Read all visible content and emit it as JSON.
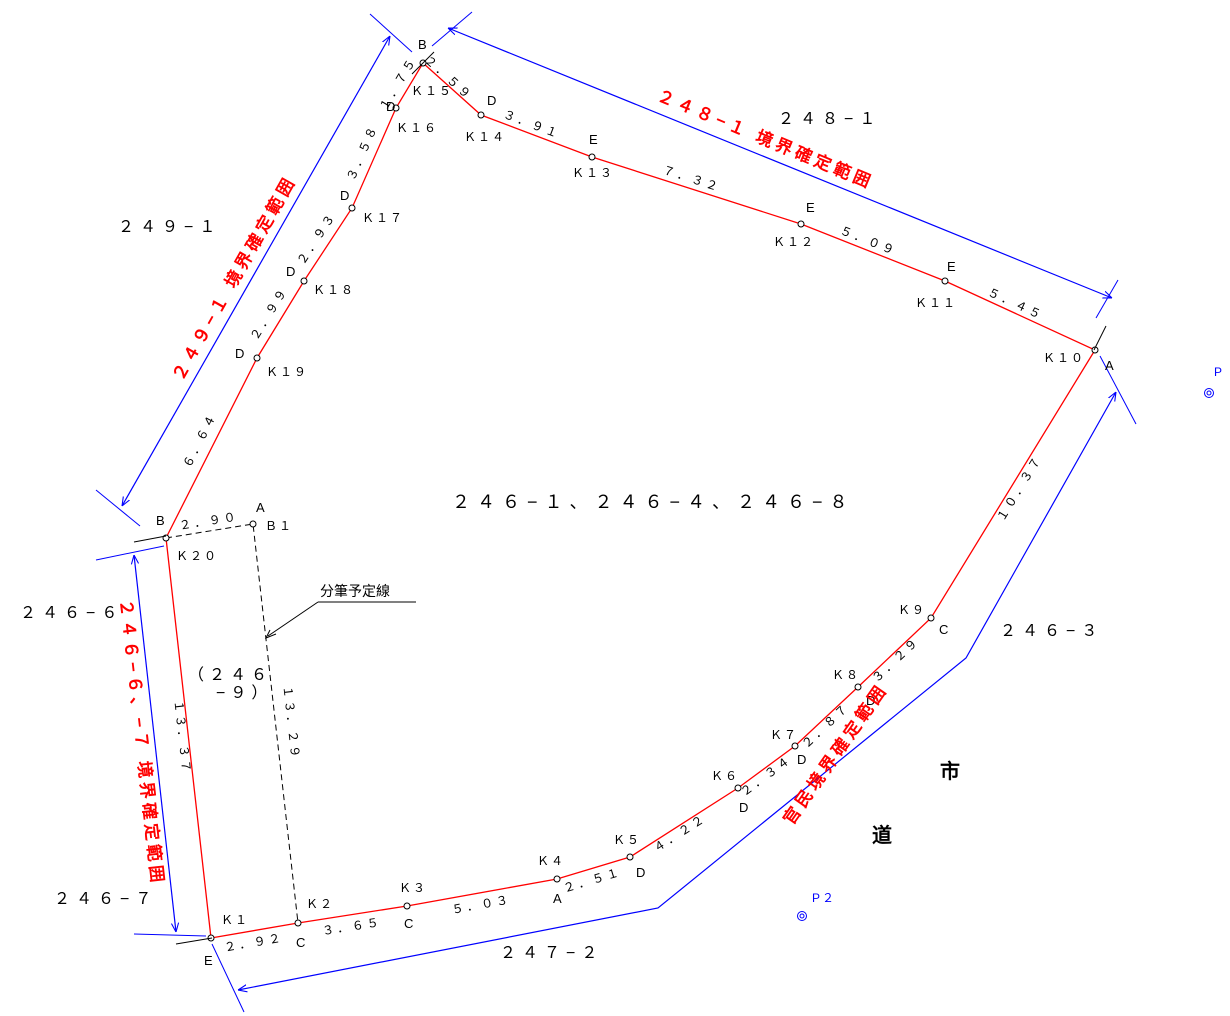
{
  "labels": {
    "main_parcel": "２４６−１、２４６−４、２４６−８",
    "sub_parcel_line1": "（２４６",
    "sub_parcel_line2": "−９）",
    "split_line": "分筆予定線",
    "road_1": "市",
    "road_2": "道"
  },
  "neighbors": {
    "n248_1": "２４８−１",
    "n249_1": "２４９−１",
    "n246_6": "２４６−６",
    "n246_7": "２４６−７",
    "n246_3": "２４６−３",
    "n247_2": "２４７−２"
  },
  "boundaries": {
    "b248_1": "２４８−１ 境界確定範囲",
    "b249_1": "２４９−１ 境界確定範囲",
    "b246_6_7": "２４６−６、−７ 境界確定範囲",
    "official": "官民境界確定範囲"
  },
  "control_points": {
    "p1": "P",
    "p2": "P２"
  },
  "points": [
    {
      "id": "K1",
      "name": "Ｋ１",
      "marker": "E"
    },
    {
      "id": "K2",
      "name": "Ｋ２",
      "marker": "C"
    },
    {
      "id": "K3",
      "name": "Ｋ３",
      "marker": "C"
    },
    {
      "id": "K4",
      "name": "Ｋ４",
      "marker": "A"
    },
    {
      "id": "K5",
      "name": "Ｋ５",
      "marker": "D"
    },
    {
      "id": "K6",
      "name": "Ｋ６",
      "marker": "D"
    },
    {
      "id": "K7",
      "name": "Ｋ７",
      "marker": "D"
    },
    {
      "id": "K8",
      "name": "Ｋ８",
      "marker": "D"
    },
    {
      "id": "K9",
      "name": "Ｋ９",
      "marker": "C"
    },
    {
      "id": "K10",
      "name": "Ｋ１０",
      "marker": "A"
    },
    {
      "id": "K11",
      "name": "Ｋ１１",
      "marker": "E"
    },
    {
      "id": "K12",
      "name": "Ｋ１２",
      "marker": "E"
    },
    {
      "id": "K13",
      "name": "Ｋ１３",
      "marker": "E"
    },
    {
      "id": "K14",
      "name": "Ｋ１４",
      "marker": "D"
    },
    {
      "id": "K15",
      "name": "Ｋ１５",
      "marker": "B"
    },
    {
      "id": "K16",
      "name": "Ｋ１６",
      "marker": "D"
    },
    {
      "id": "K17",
      "name": "Ｋ１７",
      "marker": "D"
    },
    {
      "id": "K18",
      "name": "Ｋ１８",
      "marker": "D"
    },
    {
      "id": "K19",
      "name": "Ｋ１９",
      "marker": "D"
    },
    {
      "id": "K20",
      "name": "Ｋ２０",
      "marker": "B"
    },
    {
      "id": "B1",
      "name": "Ｂ１",
      "marker": "A"
    }
  ],
  "distances": {
    "K1_K2": "２．９２",
    "K2_K3": "３．６５",
    "K3_K4": "５．０３",
    "K4_K5": "２．５１",
    "K5_K6": "４．２２",
    "K6_K7": "２．３４",
    "K7_K8": "２．８７",
    "K8_K9": "３．２９",
    "K9_K10": "１０．３７",
    "K10_K11": "５．４５",
    "K11_K12": "５．０９",
    "K12_K13": "７．３２",
    "K13_K14": "３．９１",
    "K14_K15": "２．５９",
    "K15_K16": "１．７５",
    "K16_K17": "３．５８",
    "K17_K18": "２．９３",
    "K18_K19": "２．９９",
    "K19_K20": "６．６４",
    "K20_K1": "１３．３７",
    "K20_B1": "２．９０",
    "B1_K2": "１３．２９"
  },
  "colors": {
    "parcel_boundary": "#ff0000",
    "confirmation_range": "#0000ff",
    "split_line": "#000000",
    "text": "#000000"
  }
}
